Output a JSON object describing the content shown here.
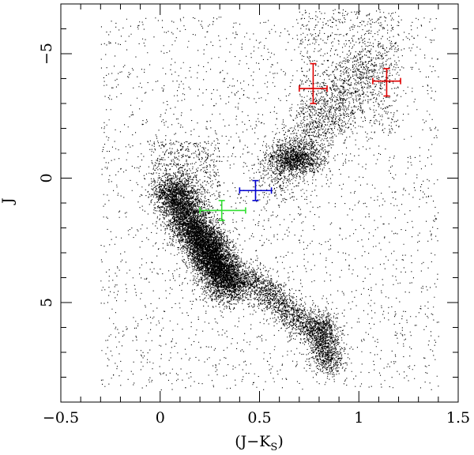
{
  "chart_data": {
    "type": "scatter",
    "title": "",
    "xlabel": {
      "main": "(J−K",
      "sub": "S",
      "close": ")"
    },
    "ylabel": "J",
    "xlim": [
      -0.5,
      1.5
    ],
    "ylim": [
      9,
      -7
    ],
    "y_inverted": true,
    "x_ticks": [
      -0.5,
      0,
      0.5,
      1,
      1.5
    ],
    "x_tick_labels": [
      "−0.5",
      "0",
      "0.5",
      "1",
      "1.5"
    ],
    "y_ticks": [
      -5,
      0,
      5
    ],
    "y_tick_labels": [
      "−5",
      "0",
      "5"
    ],
    "grid": false,
    "background_population": {
      "description_note": "dense field of black dots (color-magnitude diagram)",
      "color": "#000000"
    },
    "error_points": [
      {
        "color": "#e00000",
        "x": 0.77,
        "y": -3.6,
        "xerr": [
          0.07,
          0.07
        ],
        "yerr": [
          1.0,
          0.6
        ]
      },
      {
        "color": "#e00000",
        "x": 1.14,
        "y": -3.9,
        "xerr": [
          0.07,
          0.07
        ],
        "yerr": [
          0.5,
          0.6
        ]
      },
      {
        "color": "#0000d0",
        "x": 0.48,
        "y": 0.5,
        "xerr": [
          0.08,
          0.08
        ],
        "yerr": [
          0.4,
          0.4
        ]
      },
      {
        "color": "#30e030",
        "x": 0.31,
        "y": 1.3,
        "xerr": [
          0.11,
          0.12
        ],
        "yerr": [
          0.4,
          0.4
        ]
      }
    ]
  }
}
